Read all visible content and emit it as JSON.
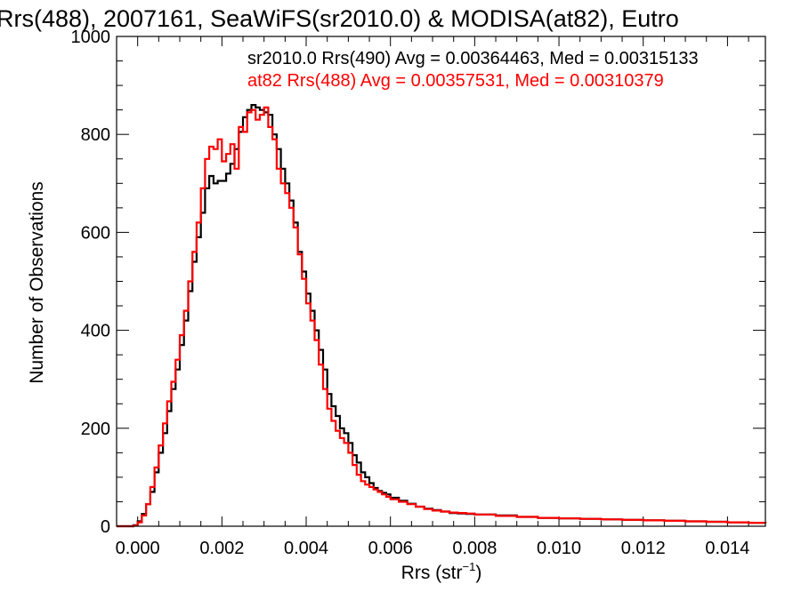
{
  "chart_data": {
    "type": "line",
    "title": "Rrs(488), 2007161, SeaWiFS(sr2010.0) & MODISA(at82), Eutro",
    "xlabel_main": "Rrs (str",
    "xlabel_sup": "−1",
    "xlabel_close": ")",
    "ylabel": "Number of Observations",
    "xlim": [
      -0.0005,
      0.0149
    ],
    "ylim": [
      0,
      1000
    ],
    "x_ticks": [
      0.0,
      0.002,
      0.004,
      0.006,
      0.008,
      0.01,
      0.012,
      0.014
    ],
    "x_tick_labels": [
      "0.000",
      "0.002",
      "0.004",
      "0.006",
      "0.008",
      "0.010",
      "0.012",
      "0.014"
    ],
    "y_ticks": [
      0,
      200,
      400,
      600,
      800,
      1000
    ],
    "y_tick_labels": [
      "0",
      "200",
      "400",
      "600",
      "800",
      "1000"
    ],
    "grid": false,
    "legend_placement": "top-right",
    "series": [
      {
        "name": "sr2010.0 Rrs(490) Avg = 0.00364463, Med = 0.00315133",
        "color": "#000000",
        "x": [
          -0.0005,
          -0.0003,
          -0.0001,
          0.0,
          0.0001,
          0.0002,
          0.0003,
          0.0004,
          0.0005,
          0.0006,
          0.0007,
          0.0008,
          0.0009,
          0.001,
          0.0011,
          0.0012,
          0.0013,
          0.0014,
          0.0015,
          0.0016,
          0.0017,
          0.0018,
          0.0019,
          0.002,
          0.0021,
          0.0022,
          0.0023,
          0.0024,
          0.0025,
          0.0026,
          0.0027,
          0.0028,
          0.0029,
          0.003,
          0.0031,
          0.0032,
          0.0033,
          0.0034,
          0.0035,
          0.0036,
          0.0037,
          0.0038,
          0.0039,
          0.004,
          0.0041,
          0.0042,
          0.0043,
          0.0044,
          0.0045,
          0.0046,
          0.0047,
          0.0048,
          0.0049,
          0.005,
          0.0051,
          0.0052,
          0.0053,
          0.0054,
          0.0055,
          0.0056,
          0.0057,
          0.0058,
          0.0059,
          0.006,
          0.0062,
          0.0064,
          0.0066,
          0.0068,
          0.007,
          0.0072,
          0.0074,
          0.0076,
          0.0078,
          0.008,
          0.0085,
          0.009,
          0.0095,
          0.01,
          0.0105,
          0.011,
          0.0115,
          0.012,
          0.0125,
          0.013,
          0.0135,
          0.014,
          0.0145,
          0.0149
        ],
        "y": [
          0,
          0,
          2,
          10,
          25,
          45,
          70,
          110,
          150,
          190,
          235,
          280,
          320,
          370,
          420,
          480,
          540,
          590,
          640,
          690,
          715,
          700,
          705,
          705,
          720,
          740,
          770,
          805,
          835,
          850,
          860,
          855,
          850,
          845,
          840,
          800,
          770,
          730,
          700,
          665,
          620,
          560,
          520,
          475,
          440,
          400,
          360,
          320,
          270,
          245,
          225,
          200,
          190,
          170,
          145,
          130,
          110,
          100,
          88,
          78,
          72,
          68,
          65,
          58,
          52,
          46,
          40,
          36,
          33,
          30,
          27,
          26,
          25,
          24,
          22,
          19,
          17,
          16,
          15,
          14,
          13,
          12,
          11,
          10,
          9,
          8,
          7,
          6
        ]
      },
      {
        "name": "at82 Rrs(488) Avg = 0.00357531, Med = 0.00310379",
        "color": "#ff0000",
        "x": [
          -0.0005,
          -0.0003,
          -0.0001,
          0.0,
          0.0001,
          0.0002,
          0.0003,
          0.0004,
          0.0005,
          0.0006,
          0.0007,
          0.0008,
          0.0009,
          0.001,
          0.0011,
          0.0012,
          0.0013,
          0.0014,
          0.0015,
          0.0016,
          0.0017,
          0.0018,
          0.0019,
          0.002,
          0.0021,
          0.0022,
          0.0023,
          0.0024,
          0.0025,
          0.0026,
          0.0027,
          0.0028,
          0.0029,
          0.003,
          0.0031,
          0.0032,
          0.0033,
          0.0034,
          0.0035,
          0.0036,
          0.0037,
          0.0038,
          0.0039,
          0.004,
          0.0041,
          0.0042,
          0.0043,
          0.0044,
          0.0045,
          0.0046,
          0.0047,
          0.0048,
          0.0049,
          0.005,
          0.0051,
          0.0052,
          0.0053,
          0.0054,
          0.0055,
          0.0056,
          0.0057,
          0.0058,
          0.0059,
          0.006,
          0.0062,
          0.0064,
          0.0066,
          0.0068,
          0.007,
          0.0072,
          0.0074,
          0.0076,
          0.0078,
          0.008,
          0.0085,
          0.009,
          0.0095,
          0.01,
          0.0105,
          0.011,
          0.0115,
          0.012,
          0.0125,
          0.013,
          0.0135,
          0.014,
          0.0145,
          0.0149
        ],
        "y": [
          0,
          0,
          1,
          8,
          22,
          45,
          80,
          120,
          165,
          210,
          255,
          295,
          340,
          390,
          440,
          500,
          560,
          620,
          690,
          750,
          775,
          770,
          790,
          745,
          760,
          780,
          730,
          815,
          805,
          845,
          850,
          830,
          840,
          855,
          815,
          790,
          730,
          700,
          680,
          650,
          610,
          555,
          505,
          455,
          420,
          380,
          330,
          280,
          240,
          215,
          195,
          180,
          170,
          150,
          125,
          105,
          92,
          85,
          80,
          75,
          70,
          65,
          60,
          55,
          50,
          45,
          40,
          35,
          32,
          30,
          28,
          27,
          26,
          24,
          21,
          19,
          17,
          16,
          15,
          14,
          13,
          12,
          11,
          10,
          9,
          8,
          7,
          6
        ]
      }
    ]
  }
}
